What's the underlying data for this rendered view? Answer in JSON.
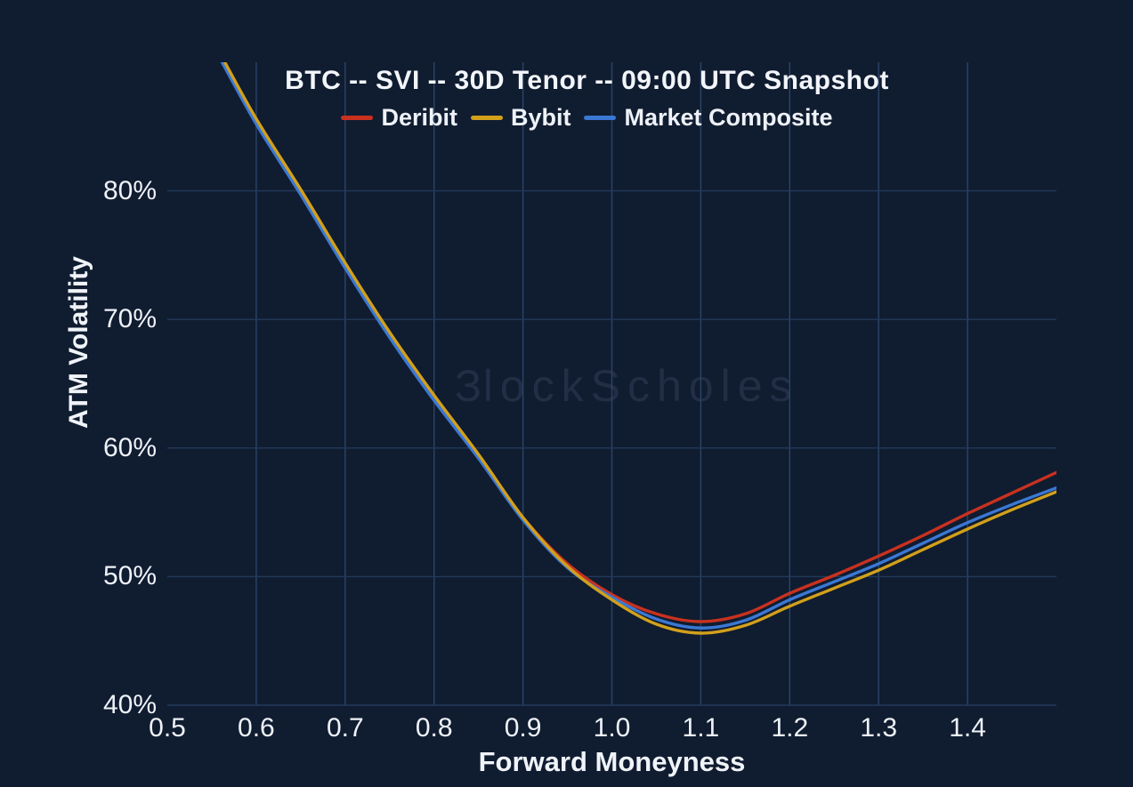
{
  "theme": {
    "background": "#101c30",
    "text_color": "#eef2f8",
    "grid_vertical_color": "#2b4568",
    "grid_horizontal_color": "#223a5a",
    "watermark_color": "#232e46"
  },
  "watermark": {
    "logo_glyph": "Ɛ",
    "text": "lockScholes"
  },
  "chart_data": {
    "type": "line",
    "title": "BTC -- SVI -- 30D Tenor -- 09:00 UTC Snapshot",
    "x_label": "Forward Moneyness",
    "y_label": "ATM Volatility",
    "xlim": [
      0.5,
      1.5
    ],
    "ylim": [
      40,
      90
    ],
    "y_unit": "%",
    "grid": true,
    "legend_position": "top-center",
    "x": [
      0.56,
      0.6,
      0.65,
      0.7,
      0.75,
      0.8,
      0.85,
      0.9,
      0.95,
      1.0,
      1.05,
      1.1,
      1.15,
      1.2,
      1.25,
      1.3,
      1.35,
      1.4,
      1.45,
      1.5
    ],
    "series": [
      {
        "name": "Deribit",
        "color": "#c9311f",
        "z": 0,
        "values": [
          90.4,
          85.4,
          79.9,
          74.2,
          68.8,
          63.9,
          59.4,
          54.6,
          51.0,
          48.6,
          47.1,
          46.5,
          47.1,
          48.7,
          50.1,
          51.6,
          53.2,
          54.9,
          56.5,
          58.1
        ]
      },
      {
        "name": "Bybit",
        "color": "#d2a01b",
        "z": 2,
        "values": [
          90.6,
          85.6,
          80.1,
          74.4,
          69.0,
          64.1,
          59.5,
          54.6,
          50.8,
          48.2,
          46.3,
          45.6,
          46.2,
          47.7,
          49.1,
          50.5,
          52.1,
          53.7,
          55.2,
          56.6
        ]
      },
      {
        "name": "Market Composite",
        "color": "#3b78d4",
        "z": 1,
        "values": [
          90.2,
          85.2,
          79.7,
          74.0,
          68.6,
          63.7,
          59.2,
          54.4,
          50.7,
          48.4,
          46.7,
          46.0,
          46.6,
          48.2,
          49.6,
          51.0,
          52.6,
          54.2,
          55.6,
          56.9
        ]
      }
    ],
    "x_ticks": [
      {
        "v": 0.5,
        "label": "0.5"
      },
      {
        "v": 0.6,
        "label": "0.6"
      },
      {
        "v": 0.7,
        "label": "0.7"
      },
      {
        "v": 0.8,
        "label": "0.8"
      },
      {
        "v": 0.9,
        "label": "0.9"
      },
      {
        "v": 1.0,
        "label": "1.0"
      },
      {
        "v": 1.1,
        "label": "1.1"
      },
      {
        "v": 1.2,
        "label": "1.2"
      },
      {
        "v": 1.3,
        "label": "1.3"
      },
      {
        "v": 1.4,
        "label": "1.4"
      }
    ],
    "y_ticks": [
      {
        "v": 80,
        "label": "80%"
      },
      {
        "v": 70,
        "label": "70%"
      },
      {
        "v": 60,
        "label": "60%"
      },
      {
        "v": 50,
        "label": "50%"
      },
      {
        "v": 40,
        "label": "40%"
      }
    ],
    "x_grid": [
      0.6,
      0.7,
      0.8,
      0.9,
      1.0,
      1.1,
      1.2,
      1.3,
      1.4
    ],
    "y_grid": [
      40,
      50,
      60,
      70,
      80
    ]
  }
}
